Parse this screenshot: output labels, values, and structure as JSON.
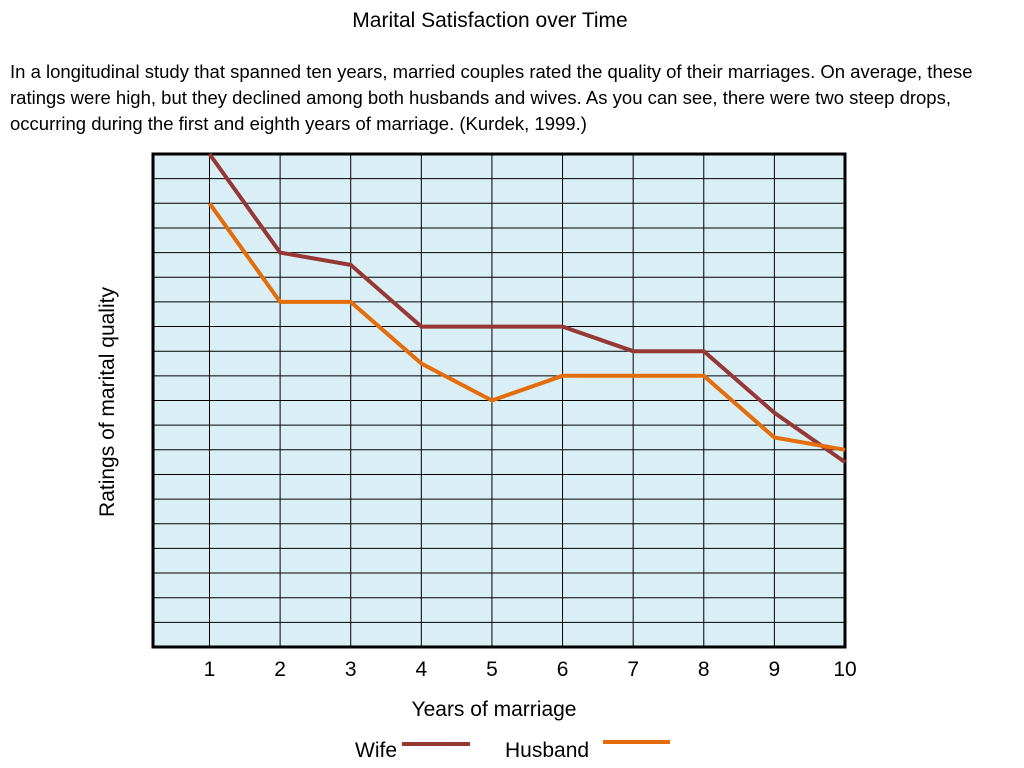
{
  "slide": {
    "title": "Marital Satisfaction over Time",
    "description": "In a longitudinal study that spanned ten years, married couples rated the quality of their marriages. On average, these ratings were high, but they declined among both husbands and wives. As you can see, there were two steep drops, occurring during the first and eighth years of marriage. (Kurdek, 1999.)"
  },
  "chart_data": {
    "type": "line",
    "title": "",
    "xlabel": "Years of marriage",
    "ylabel": "Ratings of marital quality",
    "x": [
      1,
      2,
      3,
      4,
      5,
      6,
      7,
      8,
      9,
      10
    ],
    "xlim": [
      0.2,
      10
    ],
    "ylim": [
      0,
      20
    ],
    "y_ticks_shown": false,
    "grid": true,
    "plot_background": "#daeef5",
    "grid_color": "#000000",
    "legend_position": "bottom-center",
    "series": [
      {
        "name": "Wife",
        "color": "#953735",
        "values": [
          20,
          16,
          15.5,
          13,
          13,
          13,
          12,
          12,
          9.5,
          7.5
        ]
      },
      {
        "name": "Husband",
        "color": "#e46c0a",
        "values": [
          18,
          14,
          14,
          11.5,
          10,
          11,
          11,
          11,
          8.5,
          8
        ]
      }
    ]
  }
}
